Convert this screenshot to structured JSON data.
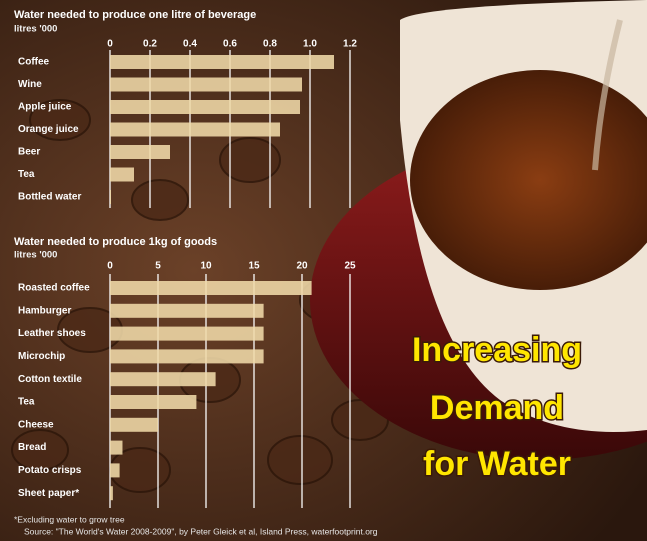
{
  "chart_data": [
    {
      "type": "bar",
      "orientation": "horizontal",
      "title": "Water needed to produce one litre of beverage",
      "unit": "litres '000",
      "categories": [
        "Coffee",
        "Wine",
        "Apple juice",
        "Orange juice",
        "Beer",
        "Tea",
        "Bottled water"
      ],
      "values": [
        1.12,
        0.96,
        0.95,
        0.85,
        0.3,
        0.12,
        0.005
      ],
      "color": "#f0d9a8",
      "xlim": [
        0,
        1.2
      ],
      "xticks": [
        0,
        0.2,
        0.4,
        0.6,
        0.8,
        {
          "value": 1,
          "label": "1.0"
        },
        1.2
      ],
      "grid": true
    },
    {
      "type": "bar",
      "orientation": "horizontal",
      "title": "Water needed to produce 1kg of goods",
      "unit": "litres '000",
      "categories": [
        "Roasted coffee",
        "Hamburger",
        "Leather shoes",
        "Microchip",
        "Cotton textile",
        "Tea",
        "Cheese",
        "Bread",
        "Potato crisps",
        "Sheet paper*"
      ],
      "values": [
        21,
        16,
        16,
        16,
        11,
        9,
        5,
        1.3,
        1,
        0.3
      ],
      "color": "#f0d9a8",
      "xlim": [
        0,
        25
      ],
      "xticks": [
        0,
        5,
        10,
        15,
        20,
        25
      ],
      "grid": true,
      "footnote": "*Excluding water to grow tree",
      "source": "Source: \"The World's Water 2008-2009\", by Peter Gleick et al, Island Press, waterfootprint.org"
    }
  ],
  "headline": [
    "Increasing",
    "Demand",
    "for  Water"
  ]
}
